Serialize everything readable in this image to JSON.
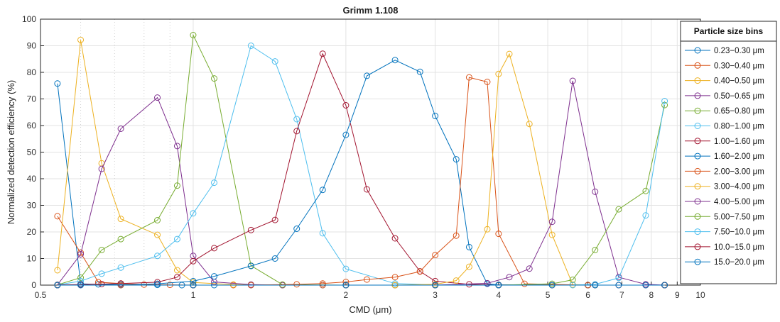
{
  "chart_data": {
    "type": "line",
    "title": "Grimm 1.108",
    "xlabel": "CMD (μm)",
    "ylabel": "Normalized detection efficiency (%)",
    "x_scale": "log",
    "xlim": [
      0.5,
      10
    ],
    "ylim": [
      0,
      100
    ],
    "x_ticks": [
      0.5,
      1,
      2,
      3,
      4,
      5,
      6,
      7,
      8,
      9,
      10
    ],
    "x_tick_labels": [
      "0.5",
      "1",
      "2",
      "3",
      "4",
      "5",
      "6",
      "7",
      "8",
      "9",
      "10"
    ],
    "y_ticks": [
      0,
      10,
      20,
      30,
      40,
      50,
      60,
      70,
      80,
      90,
      100
    ],
    "grid": true,
    "legend_title": "Particle size bins",
    "legend_position": "right",
    "marker": "circle",
    "series": [
      {
        "name": "0.23−0.30 μm",
        "color": "#0072BD",
        "x": [
          0.54,
          0.6,
          0.65,
          0.72,
          0.85,
          0.95,
          1.1,
          1.3,
          1.5,
          1.8,
          2.0,
          2.5,
          3.0,
          4.0,
          6.0,
          8.5
        ],
        "y": [
          75.8,
          0.5,
          0.3,
          0.2,
          0.1,
          0,
          0,
          0,
          0,
          0,
          0,
          0,
          0,
          0,
          0,
          0
        ]
      },
      {
        "name": "0.30−0.40 μm",
        "color": "#D95319",
        "x": [
          0.54,
          0.6,
          0.65,
          0.72,
          0.8,
          0.9,
          1.0,
          1.2,
          1.5,
          1.8,
          2.0,
          2.5,
          3.0,
          4.0,
          6.0,
          8.5
        ],
        "y": [
          25.9,
          12.2,
          1.1,
          0.6,
          0.2,
          0.1,
          0,
          0,
          0,
          0,
          0,
          0,
          0,
          0,
          0,
          0
        ]
      },
      {
        "name": "0.40−0.50 μm",
        "color": "#EDB120",
        "x": [
          0.54,
          0.6,
          0.66,
          0.72,
          0.85,
          0.93,
          1.0,
          1.2,
          1.5,
          2.0,
          2.5,
          3.0,
          4.0,
          6.0,
          8.5
        ],
        "y": [
          5.6,
          92.2,
          45.8,
          24.9,
          18.9,
          5.6,
          1.0,
          0.2,
          0,
          0,
          0,
          0,
          0,
          0,
          0
        ]
      },
      {
        "name": "0.50−0.65 μm",
        "color": "#7E2F8E",
        "x": [
          0.54,
          0.6,
          0.66,
          0.72,
          0.85,
          0.93,
          1.0,
          1.1,
          1.3,
          1.5,
          2.0,
          2.5,
          3.0,
          4.0,
          6.0,
          8.5
        ],
        "y": [
          0.1,
          11.6,
          43.7,
          58.8,
          70.5,
          52.3,
          11.0,
          1.2,
          0.2,
          0,
          0,
          0,
          0,
          0,
          0,
          0
        ]
      },
      {
        "name": "0.65−0.80 μm",
        "color": "#77AC30",
        "x": [
          0.54,
          0.6,
          0.66,
          0.72,
          0.85,
          0.93,
          1.0,
          1.1,
          1.3,
          1.5,
          2.0,
          2.5,
          3.0,
          4.0,
          6.0,
          8.5
        ],
        "y": [
          0.1,
          2.8,
          13.2,
          17.3,
          24.4,
          37.4,
          94.0,
          77.7,
          7.3,
          0.2,
          0,
          0,
          0,
          0,
          0,
          0
        ]
      },
      {
        "name": "0.80−1.00 μm",
        "color": "#4DBEEE",
        "x": [
          0.54,
          0.6,
          0.66,
          0.72,
          0.85,
          0.93,
          1.0,
          1.1,
          1.3,
          1.45,
          1.6,
          1.8,
          2.0,
          2.5,
          3.0,
          4.0,
          6.0,
          8.5
        ],
        "y": [
          0.1,
          1.5,
          4.3,
          6.6,
          11.0,
          17.3,
          27.0,
          38.5,
          90.0,
          84.1,
          62.4,
          19.5,
          6.1,
          0.6,
          0.1,
          0,
          0,
          0
        ]
      },
      {
        "name": "1.00−1.60 μm",
        "color": "#A2142F",
        "x": [
          0.54,
          0.6,
          0.66,
          0.72,
          0.85,
          0.93,
          1.0,
          1.1,
          1.3,
          1.45,
          1.6,
          1.8,
          2.0,
          2.2,
          2.5,
          2.8,
          3.0,
          3.5,
          4.0,
          6.0,
          8.5
        ],
        "y": [
          0.1,
          0.2,
          0.4,
          0.6,
          1.1,
          3.0,
          9.0,
          13.9,
          20.7,
          24.5,
          57.9,
          87.0,
          67.6,
          36.0,
          17.6,
          5.2,
          1.5,
          0.3,
          0.1,
          0,
          0
        ]
      },
      {
        "name": "1.60−2.00 μm",
        "color": "#0072BD",
        "x": [
          0.54,
          0.6,
          0.72,
          0.85,
          1.0,
          1.1,
          1.3,
          1.45,
          1.6,
          1.8,
          2.0,
          2.2,
          2.5,
          2.8,
          3.0,
          3.3,
          3.5,
          3.8,
          4.0,
          6.0,
          8.5
        ],
        "y": [
          0,
          0,
          0,
          0.5,
          1.5,
          3.3,
          7.2,
          10.0,
          21.2,
          35.8,
          56.5,
          78.7,
          84.6,
          80.2,
          63.6,
          47.3,
          14.3,
          0.5,
          0.1,
          0,
          0
        ]
      },
      {
        "name": "2.00−3.00 μm",
        "color": "#D95319",
        "x": [
          0.54,
          0.72,
          1.0,
          1.3,
          1.6,
          1.8,
          2.0,
          2.2,
          2.5,
          2.8,
          3.0,
          3.3,
          3.5,
          3.8,
          4.0,
          4.5,
          6.0,
          8.5
        ],
        "y": [
          0,
          0,
          0,
          0,
          0.3,
          0.6,
          1.2,
          2.1,
          3.0,
          5.1,
          11.3,
          18.6,
          78.1,
          76.4,
          19.3,
          0.5,
          0,
          0
        ]
      },
      {
        "name": "3.00−4.00 μm",
        "color": "#EDB120",
        "x": [
          0.54,
          1.0,
          2.0,
          2.5,
          3.0,
          3.3,
          3.5,
          3.8,
          4.0,
          4.2,
          4.6,
          5.1,
          5.6,
          6.2,
          8.5
        ],
        "y": [
          0,
          0,
          0,
          0,
          0.3,
          1.7,
          6.9,
          21.0,
          79.4,
          86.9,
          60.6,
          18.9,
          0.2,
          0,
          0
        ]
      },
      {
        "name": "4.00−5.00 μm",
        "color": "#7E2F8E",
        "x": [
          0.54,
          1.0,
          2.0,
          3.0,
          3.8,
          4.2,
          4.6,
          5.1,
          5.6,
          6.2,
          6.9,
          7.8,
          8.5
        ],
        "y": [
          0,
          0,
          0,
          0,
          0.7,
          3.0,
          6.2,
          23.8,
          76.8,
          35.1,
          3.0,
          0.3,
          0
        ]
      },
      {
        "name": "5.00−7.50 μm",
        "color": "#77AC30",
        "x": [
          0.54,
          1.0,
          2.0,
          3.0,
          4.0,
          5.1,
          5.6,
          6.2,
          6.9,
          7.8,
          8.5
        ],
        "y": [
          0,
          0,
          0,
          0,
          0,
          0.5,
          2.0,
          13.2,
          28.5,
          35.4,
          67.7
        ]
      },
      {
        "name": "7.50−10.0 μm",
        "color": "#4DBEEE",
        "x": [
          0.54,
          1.0,
          2.0,
          3.0,
          4.0,
          5.1,
          5.6,
          6.2,
          6.9,
          7.8,
          8.5
        ],
        "y": [
          0,
          0,
          0,
          0,
          0,
          0,
          0,
          0.3,
          2.7,
          26.2,
          69.2
        ]
      },
      {
        "name": "10.0−15.0 μm",
        "color": "#A2142F",
        "x": [
          0.54,
          1.0,
          2.0,
          3.0,
          4.0,
          5.1,
          6.2,
          6.9,
          7.8,
          8.5
        ],
        "y": [
          0,
          0,
          0,
          0,
          0,
          0,
          0,
          0,
          0,
          0
        ]
      },
      {
        "name": "15.0−20.0 μm",
        "color": "#0072BD",
        "x": [
          0.54,
          1.0,
          2.0,
          3.0,
          4.0,
          5.1,
          6.2,
          6.9,
          7.8,
          8.5
        ],
        "y": [
          0,
          0,
          0,
          0,
          0,
          0,
          0,
          0,
          0,
          0
        ]
      }
    ]
  }
}
